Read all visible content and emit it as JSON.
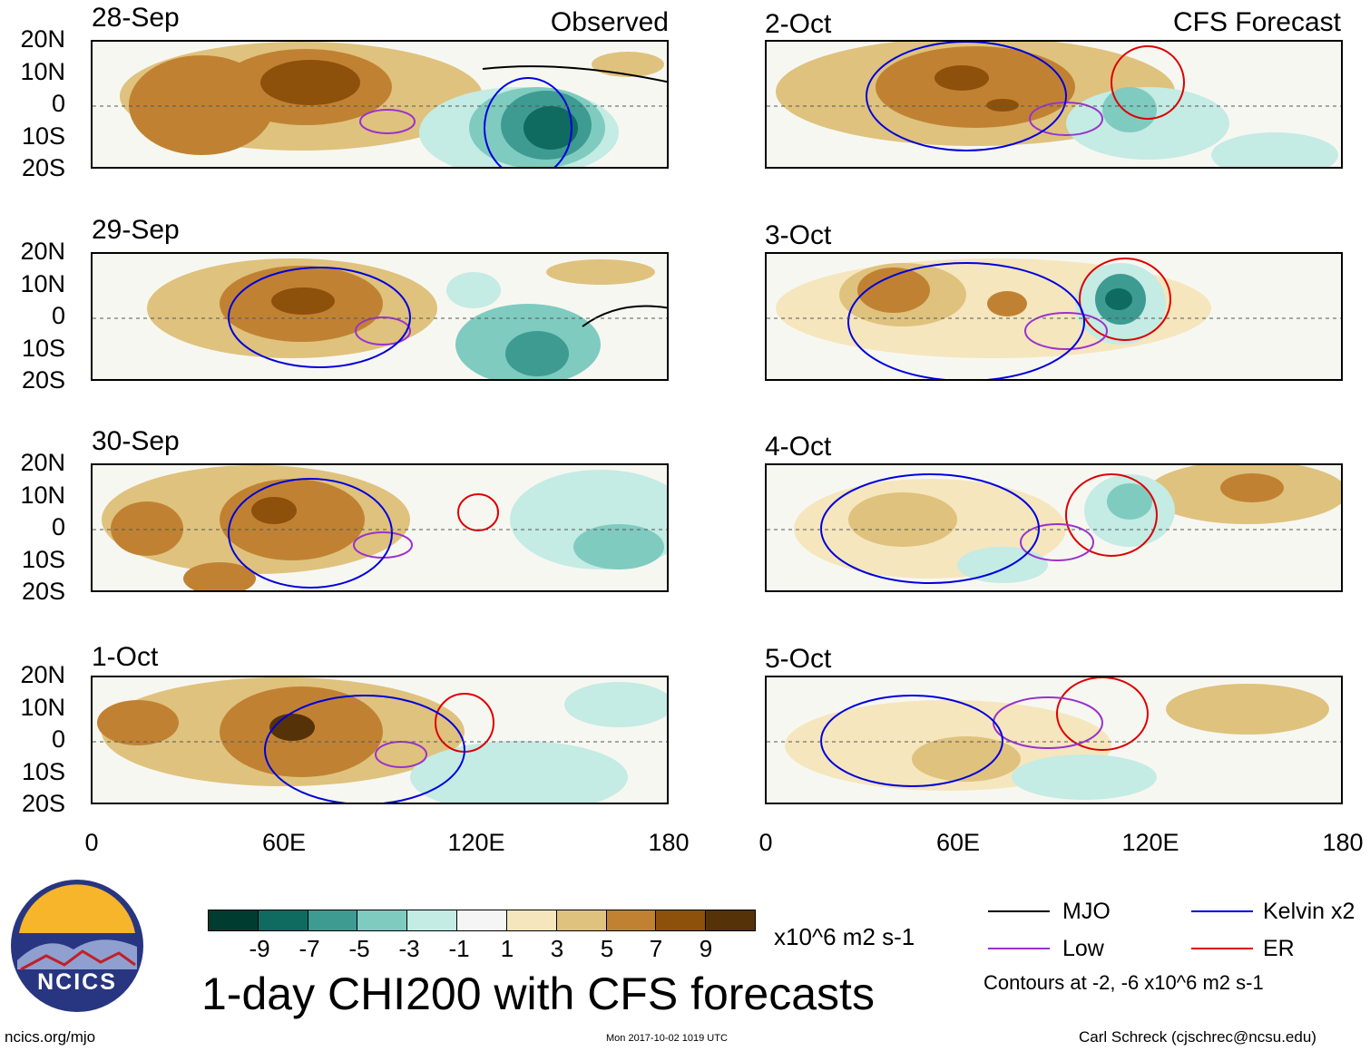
{
  "observed_title": "Observed",
  "forecast_title": "CFS Forecast",
  "panels_left": [
    {
      "date": "28-Sep"
    },
    {
      "date": "29-Sep"
    },
    {
      "date": "30-Sep"
    },
    {
      "date": "1-Oct"
    }
  ],
  "panels_right": [
    {
      "date": "2-Oct"
    },
    {
      "date": "3-Oct"
    },
    {
      "date": "4-Oct"
    },
    {
      "date": "5-Oct"
    }
  ],
  "lat_labels": [
    "20N",
    "10N",
    "0",
    "10S",
    "20S"
  ],
  "lon_labels": [
    "0",
    "60E",
    "120E",
    "180"
  ],
  "colorbar": {
    "colors": [
      "#013c30",
      "#0f6a60",
      "#3d9b92",
      "#7fcbc0",
      "#c4ebe4",
      "#f5f5f5",
      "#f5e6be",
      "#dfc27d",
      "#c08232",
      "#8d510b",
      "#563209"
    ],
    "labels": [
      "-9",
      "-7",
      "-5",
      "-3",
      "-1",
      "1",
      "3",
      "5",
      "7",
      "9"
    ],
    "units": "x10^6 m2 s-1"
  },
  "main_title": "1-day CHI200 with CFS forecasts",
  "legend": {
    "mjo": {
      "label": "MJO",
      "color": "#000000"
    },
    "kelvin": {
      "label": "Kelvin x2",
      "color": "#0000dd"
    },
    "low": {
      "label": "Low",
      "color": "#9a32cd"
    },
    "er": {
      "label": "ER",
      "color": "#dd0000"
    },
    "contours_note": "Contours at -2, -6 x10^6 m2 s-1"
  },
  "logo_text": "NCICS",
  "footer": {
    "url": "ncics.org/mjo",
    "timestamp": "Mon 2017-10-02 1019 UTC",
    "author": "Carl Schreck (cjschrec@ncsu.edu)"
  }
}
